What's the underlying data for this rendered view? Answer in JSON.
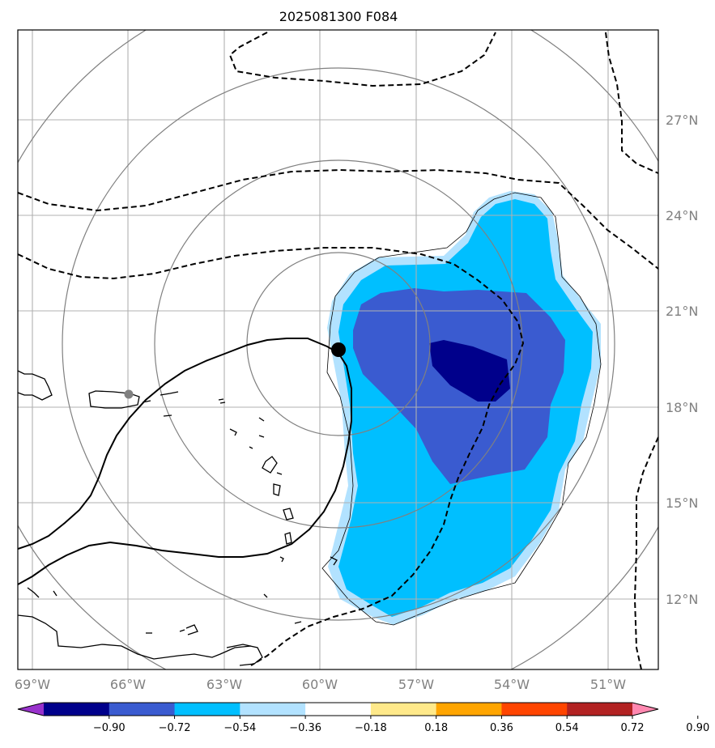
{
  "title": "2025081300 F084",
  "map": {
    "lon_range": [
      -69.7,
      -48.5
    ],
    "lat_range": [
      9.6,
      29.6
    ],
    "grid": true,
    "lon_ticks": [
      "69°W",
      "66°W",
      "63°W",
      "60°W",
      "57°W",
      "54°W",
      "51°W"
    ],
    "lat_ticks": [
      "27°N",
      "24°N",
      "21°N",
      "18°N",
      "15°N",
      "12°N"
    ],
    "storm_center": {
      "lon": -59.5,
      "lat": 19.8
    },
    "reference_point": {
      "lon": -66.0,
      "lat": 18.4
    },
    "range_rings_deg": [
      3,
      6,
      9,
      12
    ],
    "colors": {
      "grid": "#b0b0b0",
      "rings": "#808080",
      "coast": "#000000",
      "contours": "#000000"
    }
  },
  "colorbar": {
    "labels": [
      "−0.90",
      "−0.72",
      "−0.54",
      "−0.36",
      "−0.18",
      "0.18",
      "0.36",
      "0.54",
      "0.72",
      "0.90"
    ],
    "colors": [
      "#9932cc",
      "#00008b",
      "#3a5bd0",
      "#00bfff",
      "#b2e2ff",
      "#ffffff",
      "#ffe98a",
      "#ffa500",
      "#ff4500",
      "#b22222",
      "#ff88b0"
    ],
    "extend": "both"
  }
}
